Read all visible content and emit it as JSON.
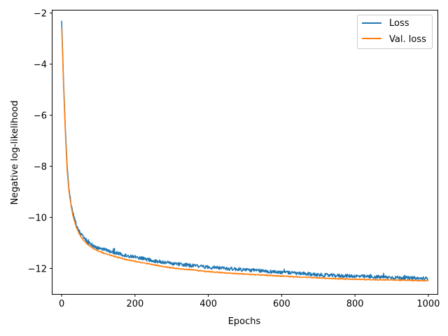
{
  "chart_data": {
    "type": "line",
    "title": "",
    "xlabel": "Epochs",
    "ylabel": "Negative log-likelihood",
    "xlim": [
      -25,
      1025
    ],
    "ylim": [
      -13.0,
      -1.9
    ],
    "xticks": [
      0,
      200,
      400,
      600,
      800,
      1000
    ],
    "xtick_labels": [
      "0",
      "200",
      "400",
      "600",
      "800",
      "1000"
    ],
    "yticks": [
      -2,
      -4,
      -6,
      -8,
      -10,
      -12
    ],
    "ytick_labels": [
      "−2",
      "−4",
      "−6",
      "−8",
      "−10",
      "−12"
    ],
    "grid": false,
    "legend_position": "top-right",
    "series": [
      {
        "name": "Loss",
        "color": "#1f77b4",
        "x": [
          0,
          2,
          5,
          10,
          15,
          20,
          25,
          30,
          40,
          50,
          60,
          70,
          80,
          90,
          100,
          125,
          150,
          175,
          200,
          250,
          300,
          350,
          400,
          450,
          500,
          550,
          600,
          650,
          700,
          750,
          800,
          850,
          900,
          950,
          1000
        ],
        "y": [
          -2.3,
          -3.2,
          -4.6,
          -6.5,
          -8.0,
          -8.9,
          -9.4,
          -9.8,
          -10.3,
          -10.6,
          -10.8,
          -10.95,
          -11.05,
          -11.15,
          -11.2,
          -11.3,
          -11.4,
          -11.5,
          -11.55,
          -11.7,
          -11.8,
          -11.88,
          -11.95,
          -12.0,
          -12.05,
          -12.1,
          -12.15,
          -12.2,
          -12.25,
          -12.28,
          -12.3,
          -12.33,
          -12.35,
          -12.38,
          -12.4
        ],
        "noise": 0.07
      },
      {
        "name": "Val. loss",
        "color": "#ff7f0e",
        "x": [
          0,
          2,
          5,
          10,
          15,
          20,
          25,
          30,
          40,
          50,
          60,
          70,
          80,
          90,
          100,
          125,
          150,
          175,
          200,
          250,
          300,
          350,
          400,
          450,
          500,
          550,
          600,
          650,
          700,
          750,
          800,
          850,
          900,
          950,
          1000
        ],
        "y": [
          -2.6,
          -3.4,
          -4.8,
          -6.7,
          -8.2,
          -9.0,
          -9.5,
          -9.9,
          -10.4,
          -10.7,
          -10.9,
          -11.05,
          -11.15,
          -11.25,
          -11.32,
          -11.45,
          -11.55,
          -11.65,
          -11.72,
          -11.85,
          -11.98,
          -12.05,
          -12.12,
          -12.18,
          -12.22,
          -12.26,
          -12.3,
          -12.34,
          -12.37,
          -12.4,
          -12.42,
          -12.44,
          -12.45,
          -12.47,
          -12.48
        ],
        "noise": 0.02
      }
    ]
  }
}
